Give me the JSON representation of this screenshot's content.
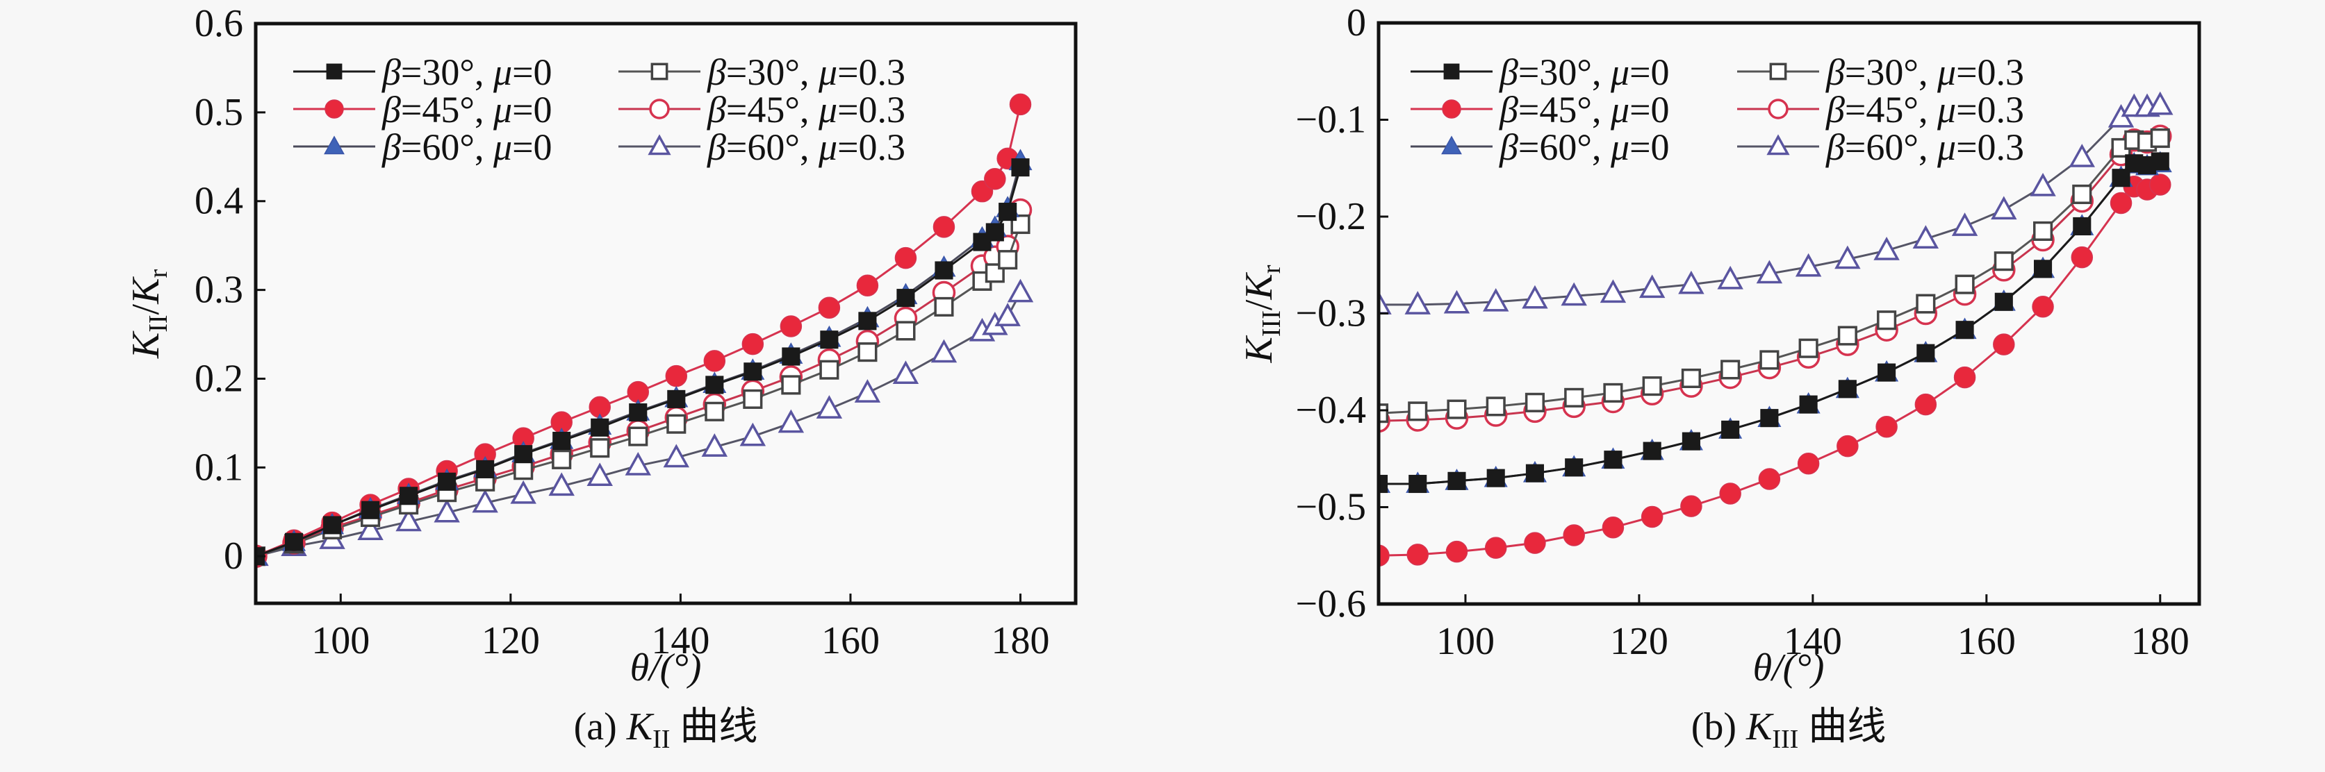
{
  "figure": {
    "captions": [
      {
        "prefix": "(a) ",
        "symbol": "K",
        "subscript": "II",
        "suffix": " 曲线"
      },
      {
        "prefix": "(b) ",
        "symbol": "K",
        "subscript": "III",
        "suffix": " 曲线"
      }
    ]
  },
  "series_styles": [
    {
      "name": "β=30°, μ=0",
      "beta": "30°",
      "mu": "0",
      "marker": "square",
      "filled": true,
      "line_color": "#1a1a1a",
      "marker_fill": "#1a1a1a",
      "marker_stroke": "#1a1a1a"
    },
    {
      "name": "β=45°, μ=0",
      "beta": "45°",
      "mu": "0",
      "marker": "circle",
      "filled": true,
      "line_color": "#d6334f",
      "marker_fill": "#e8283c",
      "marker_stroke": "#d6334f"
    },
    {
      "name": "β=60°, μ=0",
      "beta": "60°",
      "mu": "0",
      "marker": "triangle",
      "filled": true,
      "line_color": "#4a4a5a",
      "marker_fill": "#3f63b8",
      "marker_stroke": "#3a55a8"
    },
    {
      "name": "β=30°, μ=0.3",
      "beta": "30°",
      "mu": "0.3",
      "marker": "square",
      "filled": false,
      "line_color": "#555555",
      "marker_fill": "#ffffff",
      "marker_stroke": "#444444"
    },
    {
      "name": "β=45°, μ=0.3",
      "beta": "45°",
      "mu": "0.3",
      "marker": "circle",
      "filled": false,
      "line_color": "#c8344e",
      "marker_fill": "#ffffff",
      "marker_stroke": "#d6334f"
    },
    {
      "name": "β=60°, μ=0.3",
      "beta": "60°",
      "mu": "0.3",
      "marker": "triangle",
      "filled": false,
      "line_color": "#555566",
      "marker_fill": "#ffffff",
      "marker_stroke": "#5a55a0"
    }
  ],
  "chart_data": [
    {
      "id": "a",
      "type": "line",
      "title": "(a) K_II 曲线",
      "xlabel": "θ/(°)",
      "ylabel": "K_II/K_r",
      "xlim": [
        90,
        186.5
      ],
      "ylim": [
        -0.053,
        0.6
      ],
      "xticks": [
        100,
        120,
        140,
        160,
        180
      ],
      "yticks": [
        0,
        0.1,
        0.2,
        0.3,
        0.4,
        0.5,
        0.6
      ],
      "ytick_labels": [
        "0",
        "0.1",
        "0.2",
        "0.3",
        "0.4",
        "0.5",
        "0.6"
      ],
      "grid": false,
      "legend_position": "top-left",
      "x": [
        90,
        94.5,
        99,
        103.5,
        108,
        112.5,
        117,
        121.5,
        126,
        130.5,
        135,
        139.5,
        144,
        148.5,
        153,
        157.5,
        162,
        166.5,
        171,
        175.5,
        177,
        178.5,
        180
      ],
      "series": [
        {
          "name": "β=30°, μ=0",
          "values": [
            0,
            0.016,
            0.035,
            0.052,
            0.068,
            0.084,
            0.098,
            0.115,
            0.13,
            0.145,
            0.162,
            0.177,
            0.193,
            0.208,
            0.225,
            0.244,
            0.265,
            0.291,
            0.322,
            0.354,
            0.365,
            0.388,
            0.438
          ]
        },
        {
          "name": "β=45°, μ=0",
          "values": [
            0,
            0.018,
            0.038,
            0.058,
            0.076,
            0.096,
            0.115,
            0.133,
            0.151,
            0.168,
            0.185,
            0.203,
            0.22,
            0.239,
            0.259,
            0.28,
            0.305,
            0.336,
            0.371,
            0.411,
            0.425,
            0.448,
            0.509
          ]
        },
        {
          "name": "β=60°, μ=0",
          "values": [
            0,
            0.016,
            0.035,
            0.053,
            0.069,
            0.085,
            0.099,
            0.116,
            0.131,
            0.147,
            0.163,
            0.178,
            0.194,
            0.209,
            0.227,
            0.246,
            0.268,
            0.294,
            0.325,
            0.358,
            0.37,
            0.392,
            0.445
          ]
        },
        {
          "name": "β=30°, μ=0.3",
          "values": [
            0,
            0.014,
            0.03,
            0.044,
            0.058,
            0.072,
            0.084,
            0.097,
            0.109,
            0.122,
            0.135,
            0.149,
            0.163,
            0.177,
            0.193,
            0.21,
            0.23,
            0.254,
            0.281,
            0.31,
            0.319,
            0.334,
            0.374
          ]
        },
        {
          "name": "β=45°, μ=0.3",
          "values": [
            0,
            0.015,
            0.032,
            0.046,
            0.06,
            0.075,
            0.088,
            0.101,
            0.115,
            0.128,
            0.141,
            0.156,
            0.171,
            0.186,
            0.202,
            0.221,
            0.242,
            0.268,
            0.297,
            0.327,
            0.337,
            0.349,
            0.39
          ]
        },
        {
          "name": "β=60°, μ=0.3",
          "values": [
            0,
            0.011,
            0.019,
            0.029,
            0.039,
            0.049,
            0.06,
            0.07,
            0.079,
            0.09,
            0.102,
            0.111,
            0.123,
            0.135,
            0.15,
            0.166,
            0.184,
            0.205,
            0.229,
            0.253,
            0.26,
            0.27,
            0.297
          ]
        }
      ]
    },
    {
      "id": "b",
      "type": "line",
      "title": "(b) K_III 曲线",
      "xlabel": "θ/(°)",
      "ylabel": "K_III/K_r",
      "xlim": [
        90,
        184.5
      ],
      "ylim": [
        -0.6,
        0
      ],
      "xticks": [
        100,
        120,
        140,
        160,
        180
      ],
      "yticks": [
        0,
        -0.1,
        -0.2,
        -0.3,
        -0.4,
        -0.5,
        -0.6
      ],
      "ytick_labels": [
        "0",
        "−0.1",
        "−0.2",
        "−0.3",
        "−0.4",
        "−0.5",
        "−0.6"
      ],
      "grid": false,
      "legend_position": "top-left",
      "x": [
        90,
        94.5,
        99,
        103.5,
        108,
        112.5,
        117,
        121.5,
        126,
        130.5,
        135,
        139.5,
        144,
        148.5,
        153,
        157.5,
        162,
        166.5,
        171,
        175.5,
        177,
        178.5,
        180
      ],
      "series": [
        {
          "name": "β=30°, μ=0",
          "values": [
            -0.476,
            -0.476,
            -0.473,
            -0.47,
            -0.465,
            -0.459,
            -0.451,
            -0.442,
            -0.432,
            -0.42,
            -0.408,
            -0.394,
            -0.378,
            -0.361,
            -0.341,
            -0.317,
            -0.288,
            -0.254,
            -0.21,
            -0.16,
            -0.145,
            -0.147,
            -0.143
          ]
        },
        {
          "name": "β=45°, μ=0",
          "values": [
            -0.55,
            -0.549,
            -0.546,
            -0.542,
            -0.537,
            -0.529,
            -0.521,
            -0.51,
            -0.499,
            -0.486,
            -0.471,
            -0.455,
            -0.437,
            -0.417,
            -0.394,
            -0.366,
            -0.332,
            -0.293,
            -0.242,
            -0.186,
            -0.169,
            -0.172,
            -0.167
          ]
        },
        {
          "name": "β=60°, μ=0",
          "values": [
            -0.476,
            -0.476,
            -0.473,
            -0.47,
            -0.465,
            -0.459,
            -0.451,
            -0.442,
            -0.432,
            -0.42,
            -0.408,
            -0.394,
            -0.378,
            -0.361,
            -0.341,
            -0.317,
            -0.288,
            -0.254,
            -0.21,
            -0.16,
            -0.146,
            -0.148,
            -0.145
          ]
        },
        {
          "name": "β=30°, μ=0.3",
          "values": [
            -0.403,
            -0.401,
            -0.399,
            -0.396,
            -0.392,
            -0.387,
            -0.382,
            -0.375,
            -0.367,
            -0.358,
            -0.348,
            -0.336,
            -0.323,
            -0.307,
            -0.29,
            -0.27,
            -0.246,
            -0.215,
            -0.177,
            -0.129,
            -0.121,
            -0.123,
            -0.119
          ]
        },
        {
          "name": "β=45°, μ=0.3",
          "values": [
            -0.411,
            -0.41,
            -0.408,
            -0.405,
            -0.401,
            -0.396,
            -0.391,
            -0.383,
            -0.375,
            -0.366,
            -0.356,
            -0.345,
            -0.332,
            -0.317,
            -0.3,
            -0.28,
            -0.255,
            -0.224,
            -0.184,
            -0.136,
            -0.121,
            -0.123,
            -0.117
          ]
        },
        {
          "name": "β=60°, μ=0.3",
          "values": [
            -0.291,
            -0.291,
            -0.29,
            -0.288,
            -0.285,
            -0.282,
            -0.279,
            -0.274,
            -0.27,
            -0.265,
            -0.259,
            -0.252,
            -0.244,
            -0.235,
            -0.223,
            -0.21,
            -0.193,
            -0.169,
            -0.139,
            -0.098,
            -0.087,
            -0.087,
            -0.085
          ]
        }
      ]
    }
  ]
}
